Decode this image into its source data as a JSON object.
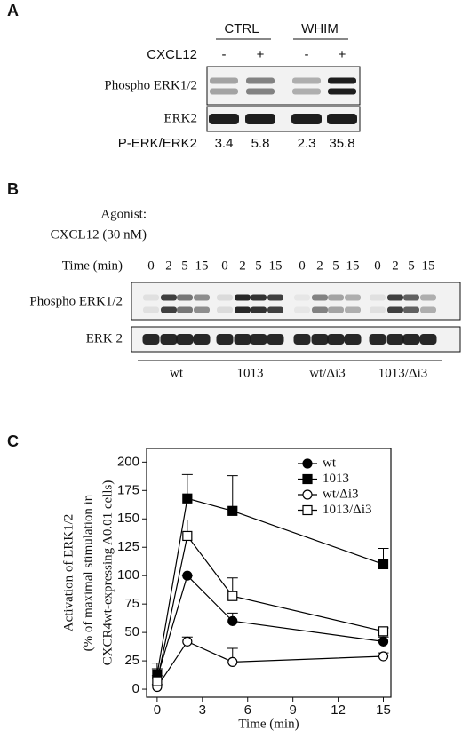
{
  "panel_a": {
    "label": "A",
    "groups": [
      "CTRL",
      "WHIM"
    ],
    "agonist": "CXCL12",
    "signs": [
      "-",
      "+",
      "-",
      "+"
    ],
    "blots": [
      "Phospho ERK1/2",
      "ERK2"
    ],
    "ratio_label": "P-ERK/ERK2",
    "ratios": [
      3.4,
      5.8,
      2.3,
      35.8
    ]
  },
  "panel_b": {
    "label": "B",
    "agonist_label": "Agonist:",
    "agonist": "CXCL12 (30 nM)",
    "time_label": "Time (min)",
    "times": [
      [
        0,
        2,
        5,
        15
      ],
      [
        0,
        2,
        5,
        15
      ],
      [
        0,
        2,
        5,
        15
      ],
      [
        0,
        2,
        5,
        15
      ]
    ],
    "blots": [
      "Phospho ERK1/2",
      "ERK 2"
    ],
    "groups": [
      "wt",
      "1013",
      "wt/Δi3",
      "1013/Δi3"
    ]
  },
  "chart_data": {
    "type": "line",
    "panel_label": "C",
    "x_label": "Time (min)",
    "y_label": [
      "Activation of ERK1/2",
      "(% of maximal stimulation in",
      "CXCR4wt-expressing A0.01 cells)"
    ],
    "x": [
      0,
      2,
      5,
      15
    ],
    "xlim": [
      -0.7,
      15.5
    ],
    "xticks": [
      0,
      3,
      6,
      9,
      12,
      15
    ],
    "ylim": [
      -7,
      212
    ],
    "yticks": [
      0,
      25,
      50,
      75,
      100,
      125,
      150,
      175,
      200
    ],
    "legend": "upper right",
    "series": [
      {
        "name": "wt",
        "color": "#000000",
        "marker": "circle",
        "filled": true,
        "values": [
          10,
          100,
          60,
          42
        ],
        "errors": [
          8,
          0,
          7,
          4
        ]
      },
      {
        "name": "1013",
        "color": "#000000",
        "marker": "square",
        "filled": true,
        "values": [
          13,
          168,
          157,
          110
        ],
        "errors": [
          10,
          21,
          31,
          14
        ]
      },
      {
        "name": "wt/Δi3",
        "color": "#000000",
        "marker": "circle",
        "filled": false,
        "values": [
          2,
          42,
          24,
          29
        ],
        "errors": [
          2,
          4,
          12,
          3
        ]
      },
      {
        "name": "1013/Δi3",
        "color": "#000000",
        "marker": "square",
        "filled": false,
        "values": [
          7,
          135,
          82,
          51
        ],
        "errors": [
          5,
          14,
          16,
          3
        ]
      }
    ]
  }
}
